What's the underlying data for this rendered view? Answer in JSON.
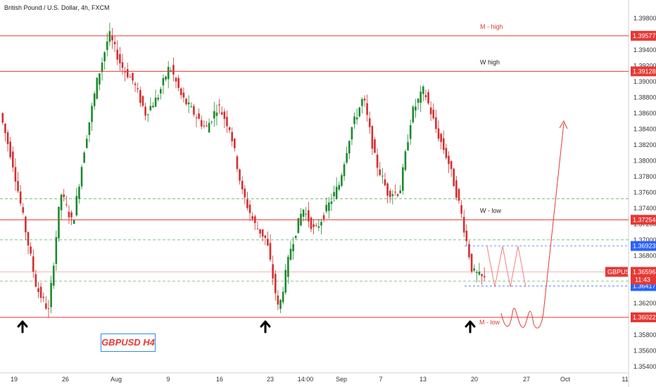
{
  "header": {
    "symbol_title": "British Pound / U.S. Dollar, 4h, FXCM"
  },
  "watermark_label": "GBPUSD H4",
  "price_tag": {
    "symbol": "GBPUSD",
    "price": "1.36596",
    "countdown": "11:43"
  },
  "colors": {
    "up": "#26a69a",
    "up_candle": "#1b8a2e",
    "down": "#d32f2f",
    "level": "#e53935",
    "dash": "#4caf50",
    "blue": "#2962ff"
  },
  "chart_data": {
    "type": "candlestick",
    "title": "British Pound / U.S. Dollar, 4h, FXCM",
    "ylim": [
      1.3532,
      1.3994
    ],
    "y_ticks": [
      "1.35400",
      "1.35600",
      "1.35800",
      "1.36000",
      "1.36200",
      "1.36400",
      "1.36600",
      "1.36800",
      "1.37000",
      "1.37200",
      "1.37400",
      "1.37600",
      "1.37800",
      "1.38000",
      "1.38200",
      "1.38400",
      "1.38600",
      "1.38800",
      "1.39000",
      "1.39200",
      "1.39400",
      "1.39600",
      "1.39800"
    ],
    "x_ticks": [
      "19",
      "26",
      "Aug",
      "9",
      "16",
      "23",
      "14:00",
      "Sep",
      "7",
      "13",
      "20",
      "27",
      "Oct",
      "11"
    ],
    "levels": [
      {
        "name": "M - high",
        "price": 1.39577,
        "label": "1.39577",
        "tag_color": "#e53935"
      },
      {
        "name": "W high",
        "price": 1.39128,
        "label": "1.39128",
        "tag_color": "#e53935"
      },
      {
        "name": "W - low",
        "price": 1.37254,
        "label": "1.37254",
        "tag_color": "#e53935"
      },
      {
        "name": "",
        "price": 1.36923,
        "label": "1.36923",
        "tag_color": "#2962ff"
      },
      {
        "name": "",
        "price": 1.36417,
        "label": "1.36417",
        "tag_color": "#2962ff"
      },
      {
        "name": "M - low",
        "price": 1.36022,
        "label": "1.36022",
        "tag_color": "#e53935"
      }
    ],
    "dashed_levels": [
      1.3752,
      1.37,
      1.3648
    ],
    "current_price": 1.36596,
    "support_arrows": [
      "19-Jul",
      "23-Aug",
      "20-Sep"
    ],
    "ohlc_anchors": [
      1.386,
      1.38,
      1.372,
      1.364,
      1.361,
      1.376,
      1.372,
      1.382,
      1.39,
      1.396,
      1.392,
      1.39,
      1.386,
      1.388,
      1.392,
      1.388,
      1.386,
      1.384,
      1.387,
      1.384,
      1.376,
      1.372,
      1.37,
      1.361,
      1.369,
      1.374,
      1.371,
      1.374,
      1.377,
      1.384,
      1.388,
      1.38,
      1.376,
      1.376,
      1.386,
      1.389,
      1.384,
      1.38,
      1.374,
      1.366,
      1.365
    ]
  }
}
